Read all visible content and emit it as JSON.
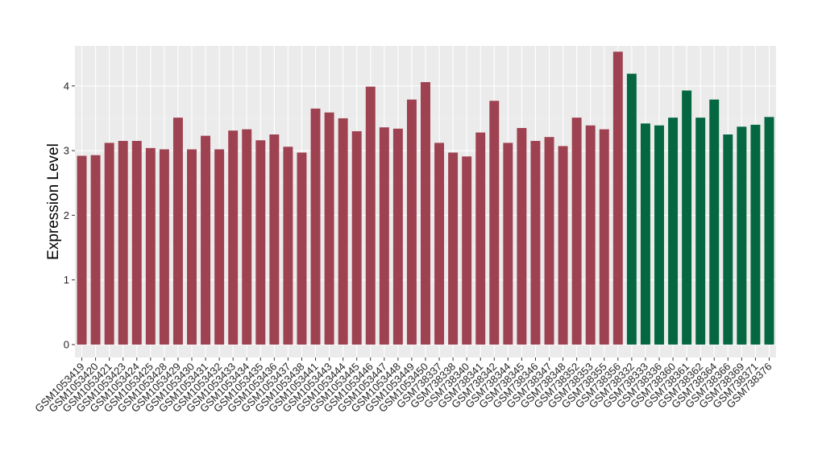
{
  "chart_data": {
    "type": "bar",
    "title": "",
    "xlabel": "",
    "ylabel": "Expression Level",
    "ylim": [
      -0.2,
      4.62
    ],
    "yticks": [
      0,
      1,
      2,
      3,
      4
    ],
    "grid": true,
    "legend": "none",
    "categories": [
      "GSM1053419",
      "GSM1053420",
      "GSM1053421",
      "GSM1053423",
      "GSM1053424",
      "GSM1053425",
      "GSM1053428",
      "GSM1053429",
      "GSM1053430",
      "GSM1053431",
      "GSM1053432",
      "GSM1053433",
      "GSM1053434",
      "GSM1053435",
      "GSM1053436",
      "GSM1053437",
      "GSM1053438",
      "GSM1053441",
      "GSM1053443",
      "GSM1053444",
      "GSM1053445",
      "GSM1053446",
      "GSM1053447",
      "GSM1053448",
      "GSM1053449",
      "GSM1053450",
      "GSM738337",
      "GSM738338",
      "GSM738340",
      "GSM738341",
      "GSM738342",
      "GSM738344",
      "GSM738345",
      "GSM738346",
      "GSM738347",
      "GSM738348",
      "GSM738352",
      "GSM738353",
      "GSM738355",
      "GSM738356",
      "GSM738332",
      "GSM738333",
      "GSM738336",
      "GSM738360",
      "GSM738361",
      "GSM738362",
      "GSM738364",
      "GSM738366",
      "GSM738369",
      "GSM738371",
      "GSM738376"
    ],
    "values": [
      2.92,
      2.93,
      3.12,
      3.15,
      3.15,
      3.04,
      3.02,
      3.51,
      3.02,
      3.23,
      3.02,
      3.31,
      3.33,
      3.16,
      3.25,
      3.06,
      2.97,
      3.65,
      3.59,
      3.5,
      3.3,
      3.99,
      3.36,
      3.34,
      3.79,
      4.06,
      3.12,
      2.97,
      2.91,
      3.28,
      3.77,
      3.12,
      3.35,
      3.15,
      3.21,
      3.07,
      3.51,
      3.39,
      3.33,
      4.53,
      4.19,
      3.42,
      3.39,
      3.51,
      3.93,
      3.51,
      3.79,
      3.25,
      3.37,
      3.4,
      3.52
    ],
    "groups": [
      {
        "color": "#9e4150",
        "count": 40
      },
      {
        "color": "#046741",
        "count": 11
      }
    ],
    "colors": {
      "panel": "#ebebeb",
      "grid_major": "#ffffff",
      "grid_minor": "#f5f5f5"
    }
  }
}
